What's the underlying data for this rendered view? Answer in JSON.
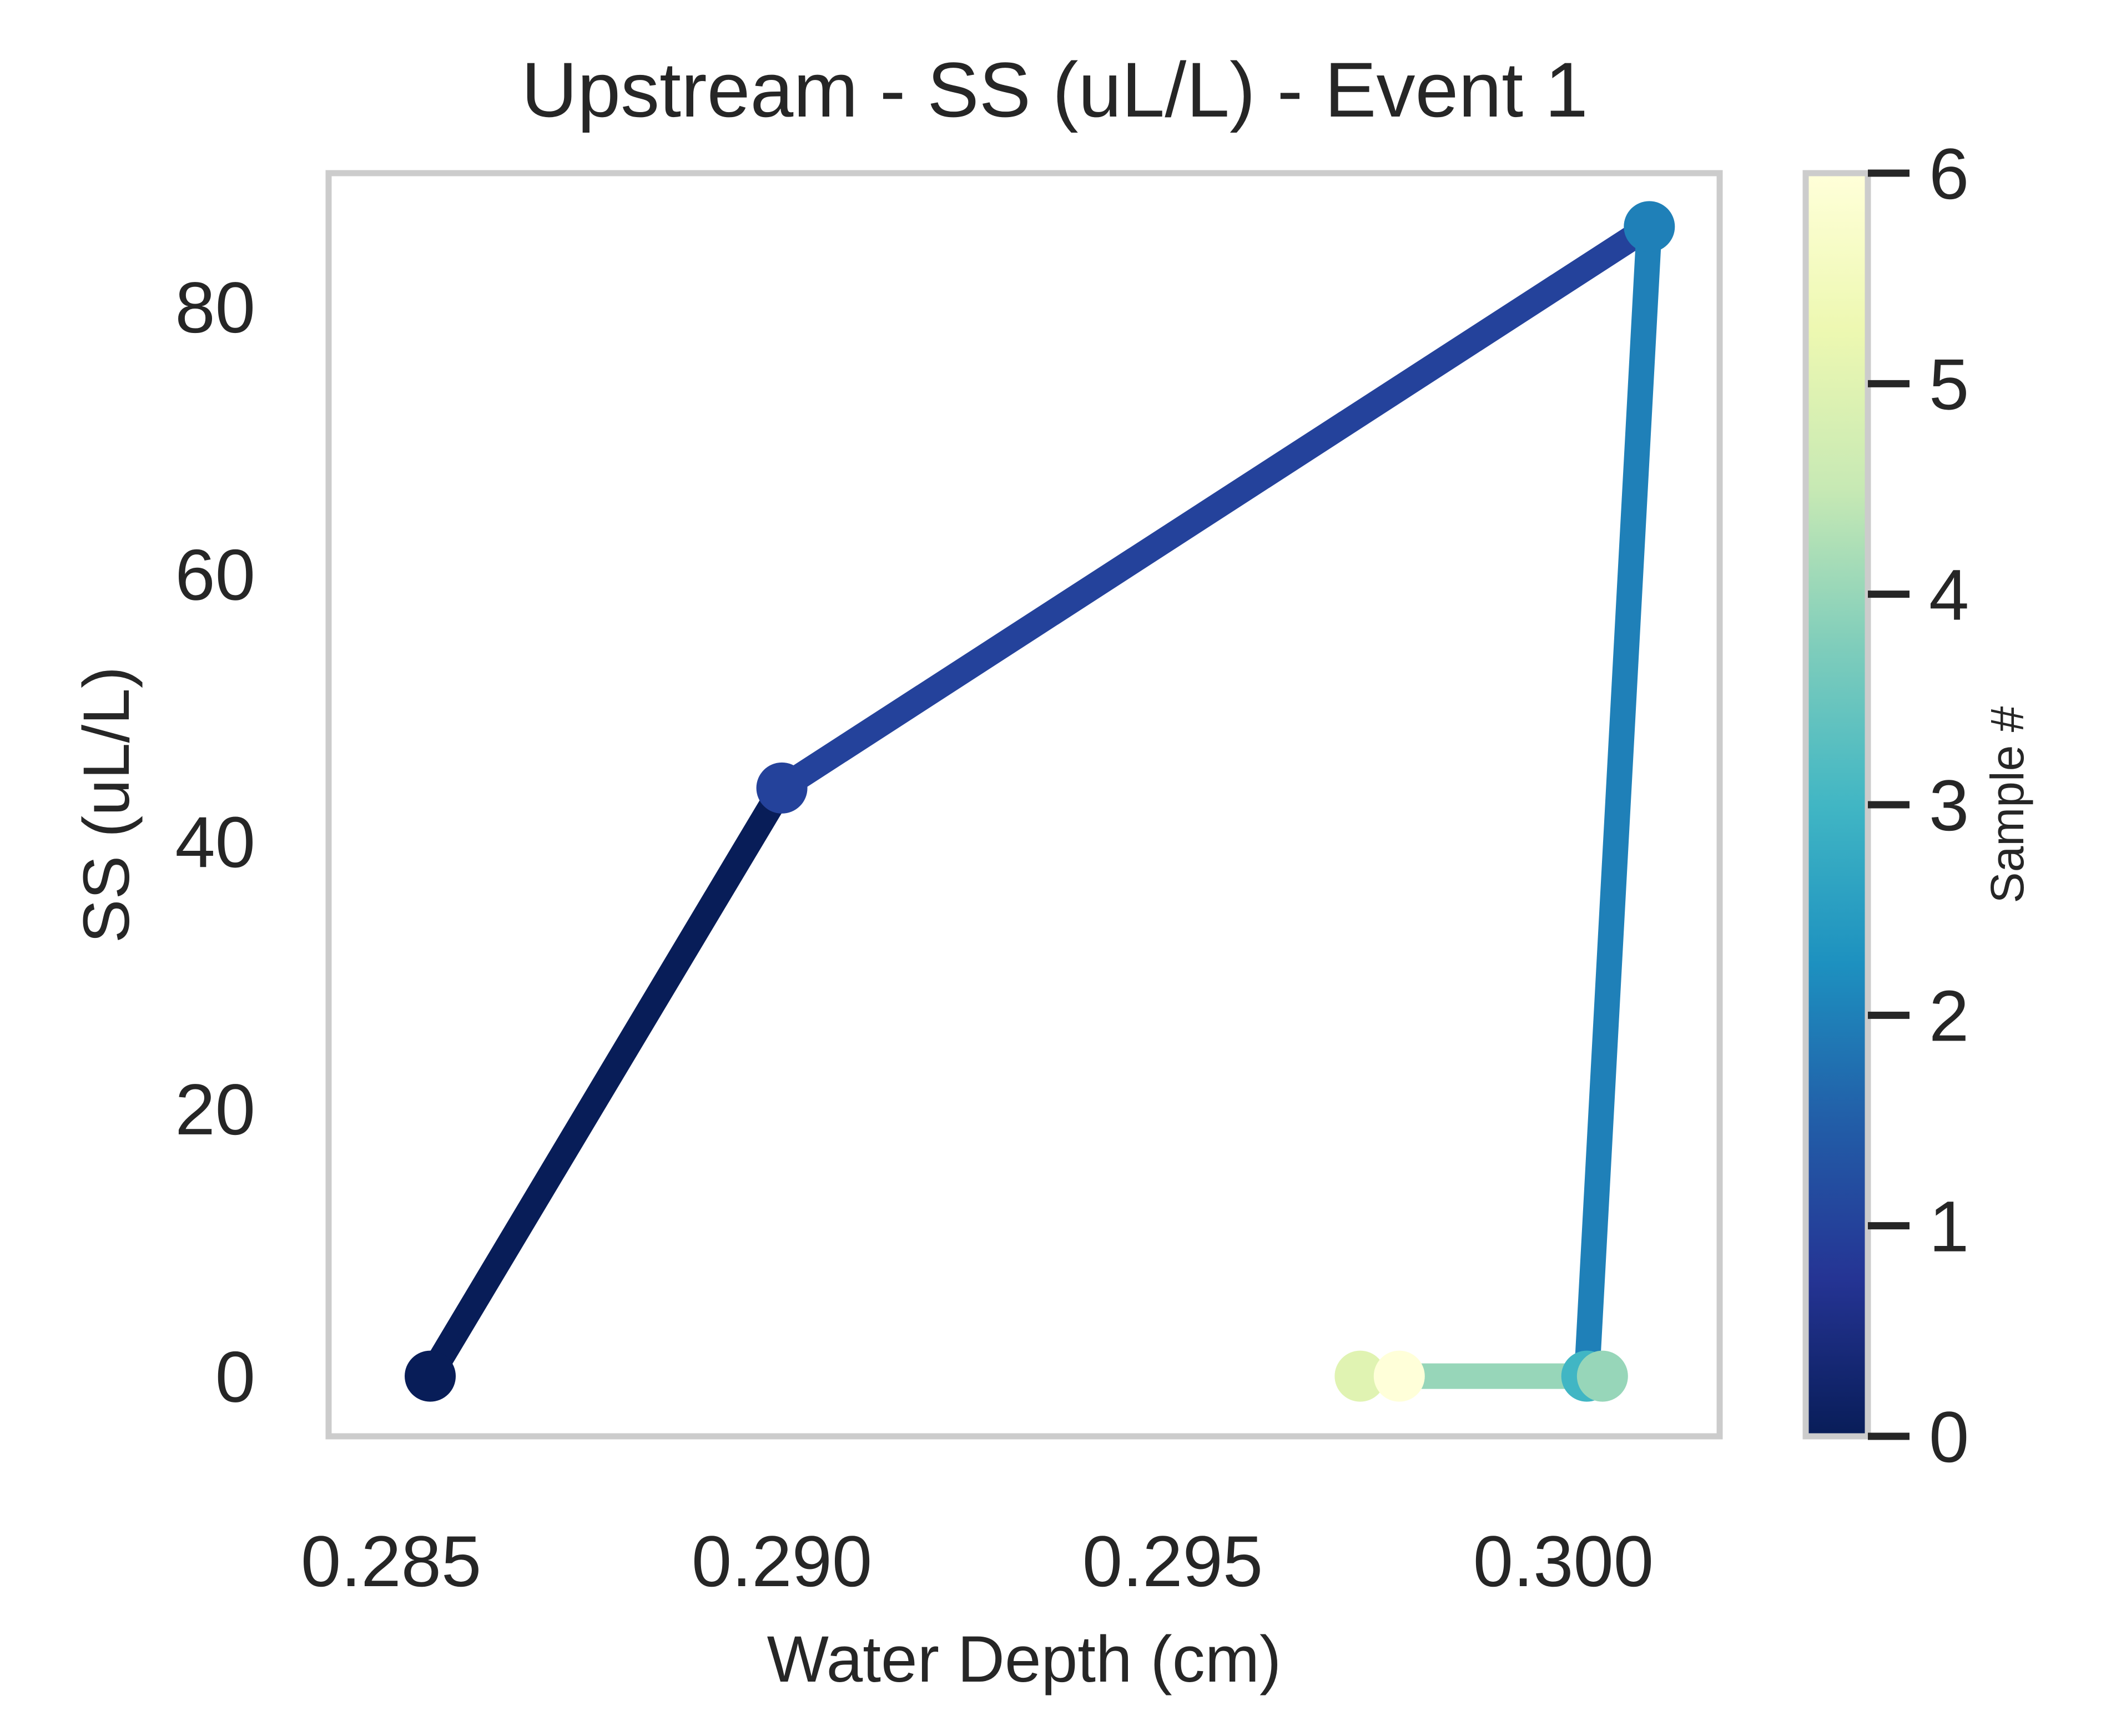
{
  "chart_data": {
    "type": "line",
    "title": "Upstream - SS (uL/L) - Event 1",
    "xlabel": "Water Depth (cm)",
    "ylabel": "SS (uL/L)",
    "xlim": [
      0.2842,
      0.302
    ],
    "ylim": [
      -4.5,
      90
    ],
    "xticks": [
      0.285,
      0.29,
      0.295,
      0.3
    ],
    "xtick_labels": [
      "0.285",
      "0.290",
      "0.295",
      "0.300"
    ],
    "yticks": [
      0,
      20,
      40,
      60,
      80
    ],
    "ytick_labels": [
      "0",
      "20",
      "40",
      "60",
      "80"
    ],
    "grid": false,
    "legend": "none",
    "points": [
      {
        "sample": 0,
        "x": 0.2855,
        "y": 0
      },
      {
        "sample": 1,
        "x": 0.29,
        "y": 44
      },
      {
        "sample": 2,
        "x": 0.3011,
        "y": 86
      },
      {
        "sample": 3,
        "x": 0.3003,
        "y": 0
      },
      {
        "sample": 4,
        "x": 0.3005,
        "y": 0
      },
      {
        "sample": 5,
        "x": 0.2974,
        "y": 0
      },
      {
        "sample": 6,
        "x": 0.2979,
        "y": 0
      }
    ],
    "colorbar": {
      "label": "Sample #",
      "min": 0,
      "max": 6,
      "ticks": [
        0,
        1,
        2,
        3,
        4,
        5,
        6
      ],
      "tick_labels": [
        "0",
        "1",
        "2",
        "3",
        "4",
        "5",
        "6"
      ],
      "colormap": "YlGnBu_r",
      "stops": [
        "#081d58",
        "#253494",
        "#225ea8",
        "#1d91c0",
        "#41b6c4",
        "#7fcdbb",
        "#c7e9b4",
        "#edf8b1",
        "#ffffd9"
      ]
    },
    "colors": {
      "frame": "#cccccc",
      "text": "#262626"
    }
  }
}
